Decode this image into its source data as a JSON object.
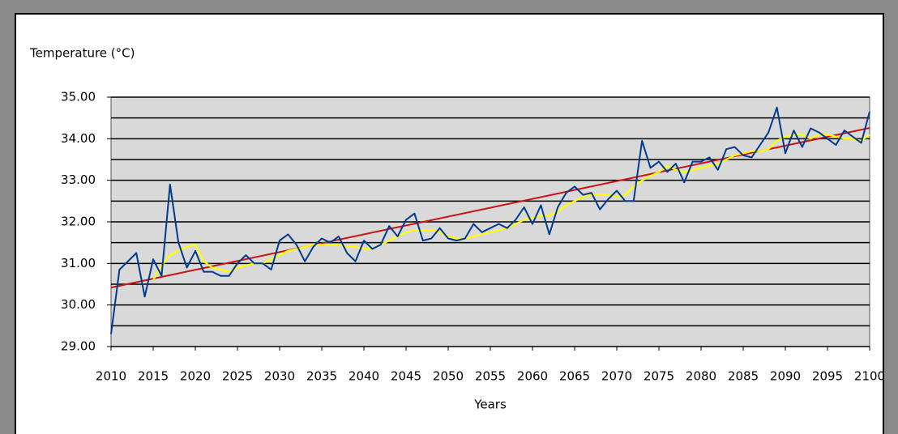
{
  "chart_data": {
    "type": "line",
    "y_label": "Temperature (°C)",
    "x_label": "Years",
    "x": [
      2010,
      2011,
      2012,
      2013,
      2014,
      2015,
      2016,
      2017,
      2018,
      2019,
      2020,
      2021,
      2022,
      2023,
      2024,
      2025,
      2026,
      2027,
      2028,
      2029,
      2030,
      2031,
      2032,
      2033,
      2034,
      2035,
      2036,
      2037,
      2038,
      2039,
      2040,
      2041,
      2042,
      2043,
      2044,
      2045,
      2046,
      2047,
      2048,
      2049,
      2050,
      2051,
      2052,
      2053,
      2054,
      2055,
      2056,
      2057,
      2058,
      2059,
      2060,
      2061,
      2062,
      2063,
      2064,
      2065,
      2066,
      2067,
      2068,
      2069,
      2070,
      2071,
      2072,
      2073,
      2074,
      2075,
      2076,
      2077,
      2078,
      2079,
      2080,
      2081,
      2082,
      2083,
      2084,
      2085,
      2086,
      2087,
      2088,
      2089,
      2090,
      2091,
      2092,
      2093,
      2094,
      2095,
      2096,
      2097,
      2098,
      2099,
      2100
    ],
    "series": [
      {
        "color": "#003b8e",
        "values": [
          29.3,
          30.85,
          31.05,
          31.25,
          30.2,
          31.1,
          30.7,
          32.9,
          31.5,
          30.9,
          31.3,
          30.8,
          30.8,
          30.7,
          30.7,
          31.0,
          31.2,
          31.0,
          31.0,
          30.85,
          31.55,
          31.7,
          31.45,
          31.05,
          31.4,
          31.6,
          31.5,
          31.65,
          31.25,
          31.05,
          31.55,
          31.35,
          31.45,
          31.9,
          31.65,
          32.05,
          32.2,
          31.55,
          31.6,
          31.85,
          31.6,
          31.55,
          31.6,
          31.95,
          31.75,
          31.85,
          31.95,
          31.85,
          32.05,
          32.35,
          31.95,
          32.4,
          31.7,
          32.35,
          32.7,
          32.85,
          32.65,
          32.7,
          32.3,
          32.55,
          32.75,
          32.5,
          32.5,
          33.95,
          33.3,
          33.45,
          33.2,
          33.4,
          32.95,
          33.45,
          33.45,
          33.55,
          33.25,
          33.75,
          33.8,
          33.6,
          33.55,
          33.85,
          34.15,
          34.75,
          33.65,
          34.2,
          33.8,
          34.25,
          34.15,
          34.0,
          33.85,
          34.2,
          34.05,
          33.9,
          34.65
        ]
      },
      {
        "color": "#ffff00",
        "values": [
          null,
          null,
          null,
          null,
          null,
          30.6,
          30.95,
          31.2,
          31.3,
          31.4,
          31.45,
          31.05,
          30.9,
          30.85,
          30.8,
          30.9,
          30.95,
          31.0,
          31.0,
          31.1,
          31.2,
          31.3,
          31.35,
          31.4,
          31.45,
          31.45,
          31.45,
          31.45,
          31.4,
          31.4,
          31.35,
          31.35,
          31.45,
          31.55,
          31.65,
          31.75,
          31.8,
          31.8,
          31.8,
          31.75,
          31.65,
          31.6,
          31.6,
          31.65,
          31.7,
          31.75,
          31.8,
          31.85,
          31.95,
          32.05,
          32.1,
          32.15,
          32.15,
          32.25,
          32.4,
          32.5,
          32.6,
          32.65,
          32.65,
          32.65,
          32.6,
          32.65,
          32.85,
          33.0,
          33.1,
          33.2,
          33.35,
          33.25,
          33.2,
          33.25,
          33.3,
          33.35,
          33.4,
          33.5,
          33.6,
          33.65,
          33.7,
          33.7,
          33.75,
          33.95,
          34.05,
          34.1,
          34.1,
          34.0,
          34.1,
          34.1,
          34.05,
          34.0,
          34.0,
          33.95,
          34.1
        ]
      },
      {
        "color": "#cc1111",
        "x": [
          2010,
          2100
        ],
        "values": [
          30.42,
          34.26
        ]
      }
    ],
    "xlim": [
      2010,
      2100
    ],
    "xticks": [
      2010,
      2015,
      2020,
      2025,
      2030,
      2035,
      2040,
      2045,
      2050,
      2055,
      2060,
      2065,
      2070,
      2075,
      2080,
      2085,
      2090,
      2095,
      2100
    ],
    "ylim": [
      29,
      35
    ],
    "yticks": [
      {
        "value": 29,
        "label": "29.00"
      },
      {
        "value": 30,
        "label": "30.00"
      },
      {
        "value": 31,
        "label": "31.00"
      },
      {
        "value": 32,
        "label": "32.00"
      },
      {
        "value": 33,
        "label": "33.00"
      },
      {
        "value": 34,
        "label": "34.00"
      },
      {
        "value": 35,
        "label": "35.00"
      }
    ],
    "minor_yticks": [
      29.5,
      30.5,
      31.5,
      32.5,
      33.5,
      34.5
    ],
    "grid": true
  }
}
